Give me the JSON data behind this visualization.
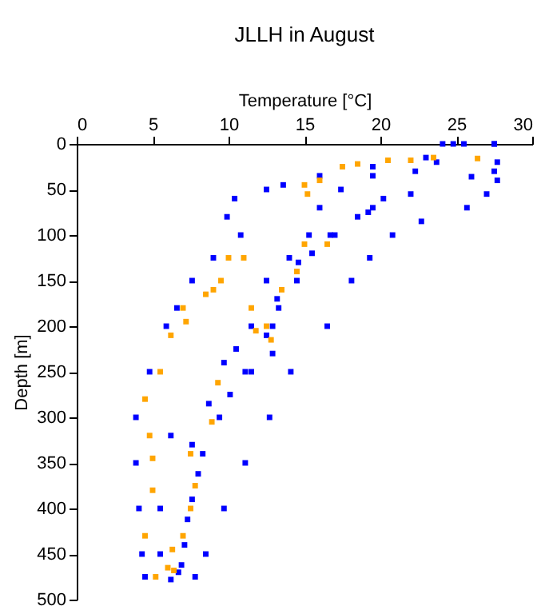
{
  "chart_data": {
    "type": "scatter",
    "title": "JLLH in August",
    "xlabel": "Temperature [°C]",
    "ylabel": "Depth [m]",
    "xlim": [
      0,
      30
    ],
    "xticks": [
      0,
      5,
      10,
      15,
      20,
      25,
      30
    ],
    "ylim": [
      500,
      0
    ],
    "yticks": [
      0,
      50,
      100,
      150,
      200,
      250,
      300,
      350,
      400,
      450,
      500
    ],
    "grid": false,
    "marker": "square",
    "series": [
      {
        "color": "#0000ff",
        "x": [
          24.1,
          23,
          19.5,
          16,
          13.6,
          12.5,
          10.4,
          9.9,
          10.8,
          9,
          7.6,
          6.6,
          5.9,
          4.8,
          3.9,
          3.9,
          4.1,
          4.3,
          4.5,
          5.5,
          5.5
        ],
        "values": [
          0,
          15,
          25,
          35,
          45,
          50,
          60,
          80,
          100,
          125,
          150,
          180,
          200,
          250,
          300,
          350,
          400,
          450,
          475,
          400,
          450
        ]
      },
      {
        "color": "#0000ff",
        "x": [
          24.8,
          23.7,
          19.5,
          17.4,
          16,
          15.3,
          14,
          12.5,
          11.5,
          10.5,
          9.7,
          8.7,
          8,
          7.3,
          6.9,
          6.2,
          6.2,
          7.6
        ],
        "values": [
          0,
          20,
          35,
          50,
          70,
          100,
          125,
          150,
          200,
          225,
          240,
          285,
          362,
          412,
          462,
          478,
          320,
          330
        ]
      },
      {
        "color": "#0000ff",
        "x": [
          27.5,
          27.5,
          26,
          22,
          19.5,
          18.5,
          17,
          15.5,
          14.5,
          13.3,
          12.5,
          11.1,
          9.4,
          8.3,
          7.6,
          7.1,
          6.7
        ],
        "values": [
          0,
          30,
          36,
          55,
          70,
          80,
          100,
          120,
          150,
          180,
          210,
          250,
          300,
          340,
          390,
          440,
          470
        ]
      },
      {
        "color": "#0000ff",
        "x": [
          25.5,
          22.3,
          20.2,
          19.2,
          16.7,
          14.6,
          13.2,
          12.9,
          12.9,
          11.5,
          10.1
        ],
        "values": [
          0,
          30,
          60,
          75,
          100,
          130,
          170,
          200,
          230,
          250,
          275
        ]
      },
      {
        "color": "#0000ff",
        "x": [
          27.5,
          27.7,
          27.7,
          27,
          25.7,
          22.7,
          20.8,
          19.3,
          18.1,
          16.5,
          14.1,
          12.7,
          11.1,
          9.7,
          8.5,
          7.8
        ],
        "values": [
          0,
          20,
          40,
          55,
          70,
          85,
          100,
          125,
          150,
          200,
          250,
          300,
          350,
          400,
          450,
          475
        ]
      },
      {
        "color": "#ffa500",
        "x": [
          26.4,
          23.5,
          22,
          20.5,
          18.5,
          17.5,
          16,
          15,
          15.2,
          15,
          16.5,
          10,
          11,
          9.5,
          8.5,
          9,
          7,
          7.2,
          14.5,
          13.5,
          11.5,
          12.5,
          6.2,
          5.5,
          4.5,
          4.8,
          5,
          9.3,
          8.9,
          7.5,
          7.8,
          7.5,
          5,
          4.5,
          7,
          6.3,
          6,
          6.4,
          5.2,
          12.8,
          11.8
        ],
        "values": [
          16,
          15,
          18,
          18,
          22,
          25,
          40,
          45,
          55,
          110,
          110,
          125,
          125,
          150,
          165,
          160,
          180,
          195,
          140,
          160,
          180,
          200,
          210,
          250,
          280,
          320,
          345,
          262,
          305,
          340,
          375,
          400,
          380,
          430,
          430,
          445,
          465,
          468,
          475,
          215,
          205
        ]
      }
    ]
  }
}
